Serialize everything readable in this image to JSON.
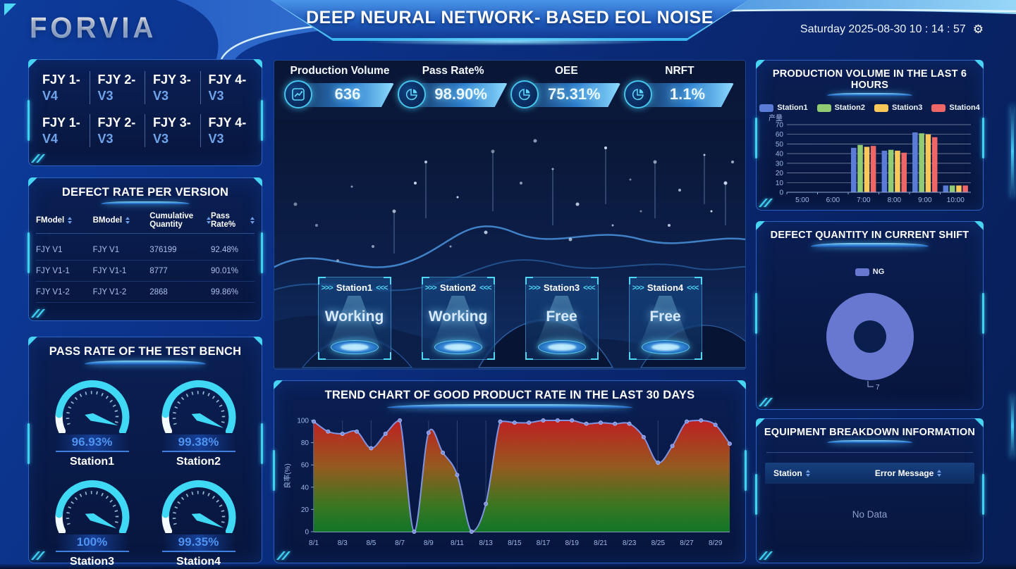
{
  "header": {
    "logo": "FORVIA",
    "title": "DEEP NEURAL NETWORK- BASED EOL NOISE TESTING",
    "datetime": "Saturday 2025-08-30 10 : 14 : 57",
    "settings_icon": "gear-icon"
  },
  "model_selector": {
    "rows": [
      [
        {
          "line1": "FJY 1-",
          "line2": "V4"
        },
        {
          "line1": "FJY 2-",
          "line2": "V3"
        },
        {
          "line1": "FJY 3-",
          "line2": "V3"
        },
        {
          "line1": "FJY 4-",
          "line2": "V3"
        }
      ],
      [
        {
          "line1": "FJY 1-",
          "line2": "V4"
        },
        {
          "line1": "FJY 2-",
          "line2": "V3"
        },
        {
          "line1": "FJY 3-",
          "line2": "V3"
        },
        {
          "line1": "FJY 4-",
          "line2": "V3"
        }
      ]
    ]
  },
  "defect_rate_table": {
    "title": "DEFECT RATE PER VERSION",
    "columns": [
      "FModel",
      "BModel",
      "Cumulative Quantity",
      "Pass Rate%"
    ],
    "rows": [
      [
        "FJY V1",
        "FJY V1",
        "376199",
        "92.48%"
      ],
      [
        "FJY V1-1",
        "FJY V1-1",
        "8777",
        "90.01%"
      ],
      [
        "FJY V1-2",
        "FJY V1-2",
        "2868",
        "99.86%"
      ]
    ]
  },
  "test_bench": {
    "title": "PASS RATE OF THE TEST BENCH",
    "gauges": [
      {
        "station": "Station1",
        "value": "96.93%",
        "percent": 96.93
      },
      {
        "station": "Station2",
        "value": "99.38%",
        "percent": 99.38
      },
      {
        "station": "Station3",
        "value": "100%",
        "percent": 100
      },
      {
        "station": "Station4",
        "value": "99.35%",
        "percent": 99.35
      }
    ],
    "accent_color": "#3fd9f6"
  },
  "kpis": [
    {
      "label": "Production Volume",
      "value": "636",
      "icon": "line-chart-icon"
    },
    {
      "label": "Pass Rate%",
      "value": "98.90%",
      "icon": "pie-chart-icon"
    },
    {
      "label": "OEE",
      "value": "75.31%",
      "icon": "pie-chart-icon"
    },
    {
      "label": "NRFT",
      "value": "1.1%",
      "icon": "pie-chart-icon"
    }
  ],
  "stations": [
    {
      "name": "Station1",
      "status": "Working"
    },
    {
      "name": "Station2",
      "status": "Working"
    },
    {
      "name": "Station3",
      "status": "Free"
    },
    {
      "name": "Station4",
      "status": "Free"
    }
  ],
  "equipment_breakdown": {
    "title": "EQUIPMENT BREAKDOWN INFORMATION",
    "columns": [
      "Station",
      "Error Message"
    ],
    "empty_text": "No Data"
  },
  "chart_data": [
    {
      "id": "trend",
      "type": "area",
      "title": "TREND CHART OF GOOD PRODUCT RATE IN THE LAST 30 DAYS",
      "ylabel": "良率(%)",
      "ylim": [
        0,
        100
      ],
      "yticks": [
        0,
        20,
        40,
        60,
        80,
        100
      ],
      "x": [
        "8/1",
        "8/2",
        "8/3",
        "8/4",
        "8/5",
        "8/6",
        "8/7",
        "8/8",
        "8/9",
        "8/10",
        "8/11",
        "8/12",
        "8/13",
        "8/14",
        "8/15",
        "8/16",
        "8/17",
        "8/18",
        "8/19",
        "8/20",
        "8/21",
        "8/22",
        "8/23",
        "8/24",
        "8/25",
        "8/26",
        "8/27",
        "8/28",
        "8/29",
        "8/30"
      ],
      "values": [
        99,
        90,
        88,
        90,
        75,
        88,
        100,
        0,
        89,
        71,
        51,
        0,
        25,
        99,
        98,
        98,
        100,
        100,
        100,
        97,
        98,
        97,
        97,
        85,
        62,
        77,
        99,
        100,
        96,
        79
      ],
      "line_color": "#8093e0",
      "marker_color": "#7b8fe0",
      "fill_gradient": [
        "#c62020",
        "#9a5d1d",
        "#3f7a20",
        "#117a28"
      ],
      "grid": "vertical"
    },
    {
      "id": "production_volume",
      "type": "bar",
      "title": "PRODUCTION VOLUME IN THE LAST 6 HOURS",
      "ylabel": "产量",
      "ylim": [
        0,
        70
      ],
      "yticks": [
        0,
        10,
        20,
        30,
        40,
        50,
        60,
        70
      ],
      "categories": [
        "5:00",
        "6:00",
        "7:00",
        "8:00",
        "9:00",
        "10:00"
      ],
      "series": [
        {
          "name": "Station1",
          "color": "#5b7cd6",
          "values": [
            0,
            0,
            46,
            43,
            62,
            7
          ]
        },
        {
          "name": "Station2",
          "color": "#91cc75",
          "values": [
            0,
            0,
            49,
            44,
            61,
            7
          ]
        },
        {
          "name": "Station3",
          "color": "#fac858",
          "values": [
            0,
            0,
            47,
            43,
            60,
            7
          ]
        },
        {
          "name": "Station4",
          "color": "#ee6666",
          "values": [
            0,
            0,
            48,
            41,
            57,
            7
          ]
        }
      ],
      "legend_position": "top",
      "grid": "horizontal"
    },
    {
      "id": "defect_quantity",
      "type": "pie",
      "title": "DEFECT QUANTITY IN CURRENT SHIFT",
      "donut": true,
      "slices": [
        {
          "label": "NG",
          "value": 7,
          "color": "#6878d0"
        }
      ],
      "data_label": "7",
      "legend_position": "top"
    }
  ]
}
